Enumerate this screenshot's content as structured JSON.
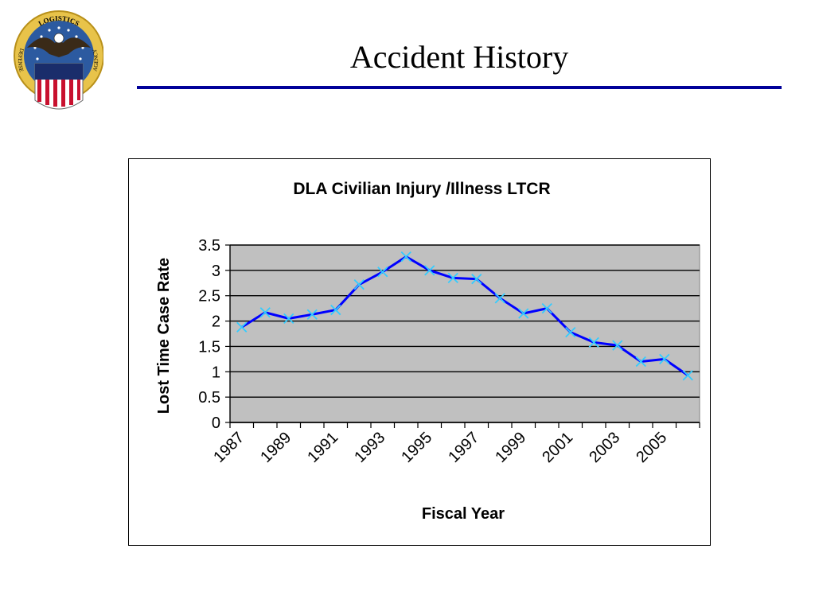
{
  "slide": {
    "title": "Accident History",
    "logo_text_top": "LOGISTICS",
    "logo_text_left": "DEFENSE",
    "logo_text_right": "AGENCY"
  },
  "colors": {
    "title_rule": "#000099",
    "plot_area": "#c0c0c0",
    "series_line": "#0000ff",
    "markers": "#33ccff"
  },
  "chart_data": {
    "type": "line",
    "title": "DLA Civilian Injury /Illness  LTCR",
    "xlabel": "Fiscal Year",
    "ylabel": "Lost Time Case Rate",
    "ylim": [
      0,
      3.5
    ],
    "yticks": [
      "0",
      "0.5",
      "1",
      "1.5",
      "2",
      "2.5",
      "3",
      "3.5"
    ],
    "x": [
      1987,
      1988,
      1989,
      1990,
      1991,
      1992,
      1993,
      1994,
      1995,
      1996,
      1997,
      1998,
      1999,
      2000,
      2001,
      2002,
      2003,
      2004,
      2005,
      2006
    ],
    "xtick_labels": [
      "1987",
      "1989",
      "1991",
      "1993",
      "1995",
      "1997",
      "1999",
      "2001",
      "2003",
      "2005"
    ],
    "grid": true,
    "legend": false,
    "series": [
      {
        "values": [
          1.88,
          2.17,
          2.05,
          2.13,
          2.22,
          2.72,
          2.97,
          3.27,
          3.0,
          2.85,
          2.83,
          2.45,
          2.15,
          2.25,
          1.78,
          1.58,
          1.52,
          1.2,
          1.25,
          0.93
        ]
      }
    ]
  }
}
